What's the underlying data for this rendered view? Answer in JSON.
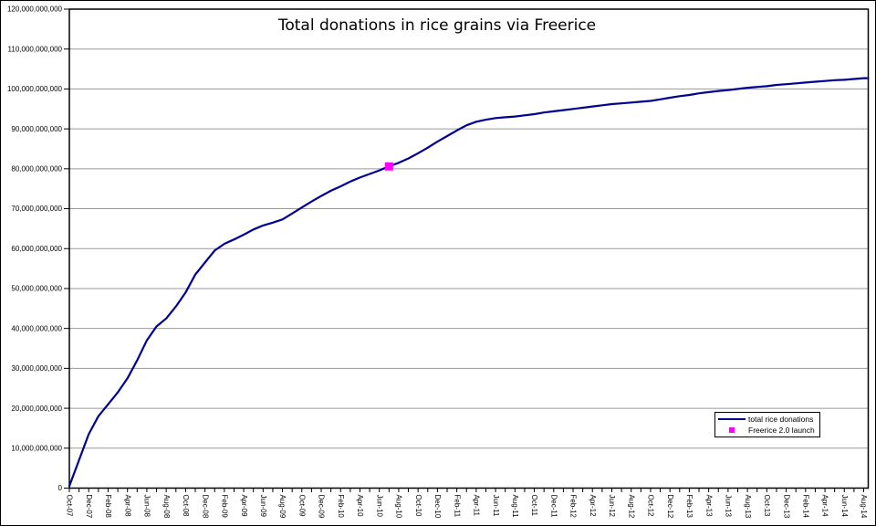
{
  "title": "Total donations in rice grains via Freerice",
  "legend": {
    "series_label": "total rice donations",
    "marker_label": "Freerice 2.0 launch"
  },
  "chart_data": {
    "type": "line",
    "title": "Total donations in rice grains via Freerice",
    "unit": "rice grains",
    "value_multiplier": 1000000000,
    "grid": "horizontal",
    "legend_position": "bottom-right",
    "ylim_billions": [
      0,
      120
    ],
    "ytick_step_billions": 10,
    "ytick_labels_bottom_to_top": [
      "0",
      "10,000,000,000",
      "20,000,000,000",
      "30,000,000,000",
      "40,000,000,000",
      "50,000,000,000",
      "60,000,000,000",
      "70,000,000,000",
      "80,000,000,000",
      "90,000,000,000",
      "100,000,000,000",
      "110,000,000,000",
      "120,000,000,000"
    ],
    "xtick_label_every": 2,
    "x_months": [
      "Oct-07",
      "Nov-07",
      "Dec-07",
      "Jan-08",
      "Feb-08",
      "Mar-08",
      "Apr-08",
      "May-08",
      "Jun-08",
      "Jul-08",
      "Aug-08",
      "Sep-08",
      "Oct-08",
      "Nov-08",
      "Dec-08",
      "Jan-09",
      "Feb-09",
      "Mar-09",
      "Apr-09",
      "May-09",
      "Jun-09",
      "Jul-09",
      "Aug-09",
      "Sep-09",
      "Oct-09",
      "Nov-09",
      "Dec-09",
      "Jan-10",
      "Feb-10",
      "Mar-10",
      "Apr-10",
      "May-10",
      "Jun-10",
      "Jul-10",
      "Aug-10",
      "Sep-10",
      "Oct-10",
      "Nov-10",
      "Dec-10",
      "Jan-11",
      "Feb-11",
      "Mar-11",
      "Apr-11",
      "May-11",
      "Jun-11",
      "Jul-11",
      "Aug-11",
      "Sep-11",
      "Oct-11",
      "Nov-11",
      "Dec-11",
      "Jan-12",
      "Feb-12",
      "Mar-12",
      "Apr-12",
      "May-12",
      "Jun-12",
      "Jul-12",
      "Aug-12",
      "Sep-12",
      "Oct-12",
      "Nov-12",
      "Dec-12",
      "Jan-13",
      "Feb-13",
      "Mar-13",
      "Apr-13",
      "May-13",
      "Jun-13",
      "Jul-13",
      "Aug-13",
      "Sep-13",
      "Oct-13",
      "Nov-13",
      "Dec-13",
      "Jan-14",
      "Feb-14",
      "Mar-14",
      "Apr-14",
      "May-14",
      "Jun-14",
      "Jul-14",
      "Aug-14"
    ],
    "series": [
      {
        "name": "total rice donations",
        "color": "#000090",
        "values_billions": [
          0.5,
          7,
          13.5,
          18,
          21,
          24,
          27.5,
          32,
          37,
          40.5,
          42.5,
          45.5,
          49,
          53.5,
          56.5,
          59.5,
          61.2,
          62.3,
          63.5,
          64.8,
          65.8,
          66.5,
          67.3,
          68.8,
          70.3,
          71.8,
          73.2,
          74.5,
          75.6,
          76.8,
          77.8,
          78.7,
          79.6,
          80.6,
          81.5,
          82.6,
          83.9,
          85.3,
          86.8,
          88.2,
          89.6,
          90.9,
          91.8,
          92.3,
          92.7,
          92.9,
          93.1,
          93.4,
          93.7,
          94.1,
          94.4,
          94.7,
          95.0,
          95.3,
          95.6,
          95.9,
          96.2,
          96.4,
          96.6,
          96.8,
          97.0,
          97.4,
          97.8,
          98.2,
          98.5,
          98.9,
          99.2,
          99.5,
          99.7,
          100.0,
          100.3,
          100.5,
          100.7,
          101.0,
          101.2,
          101.4,
          101.6,
          101.8,
          102.0,
          102.2,
          102.3,
          102.5,
          102.7
        ]
      }
    ],
    "event_marker": {
      "name": "Freerice 2.0 launch",
      "color": "#FF00FF",
      "month": "Jul-10",
      "month_index": 33,
      "value_billions": 80.6
    },
    "colors": {
      "line": "#000090",
      "marker": "#FF00FF",
      "gridline": "#999999",
      "axis": "#000000",
      "text": "#000000"
    }
  }
}
